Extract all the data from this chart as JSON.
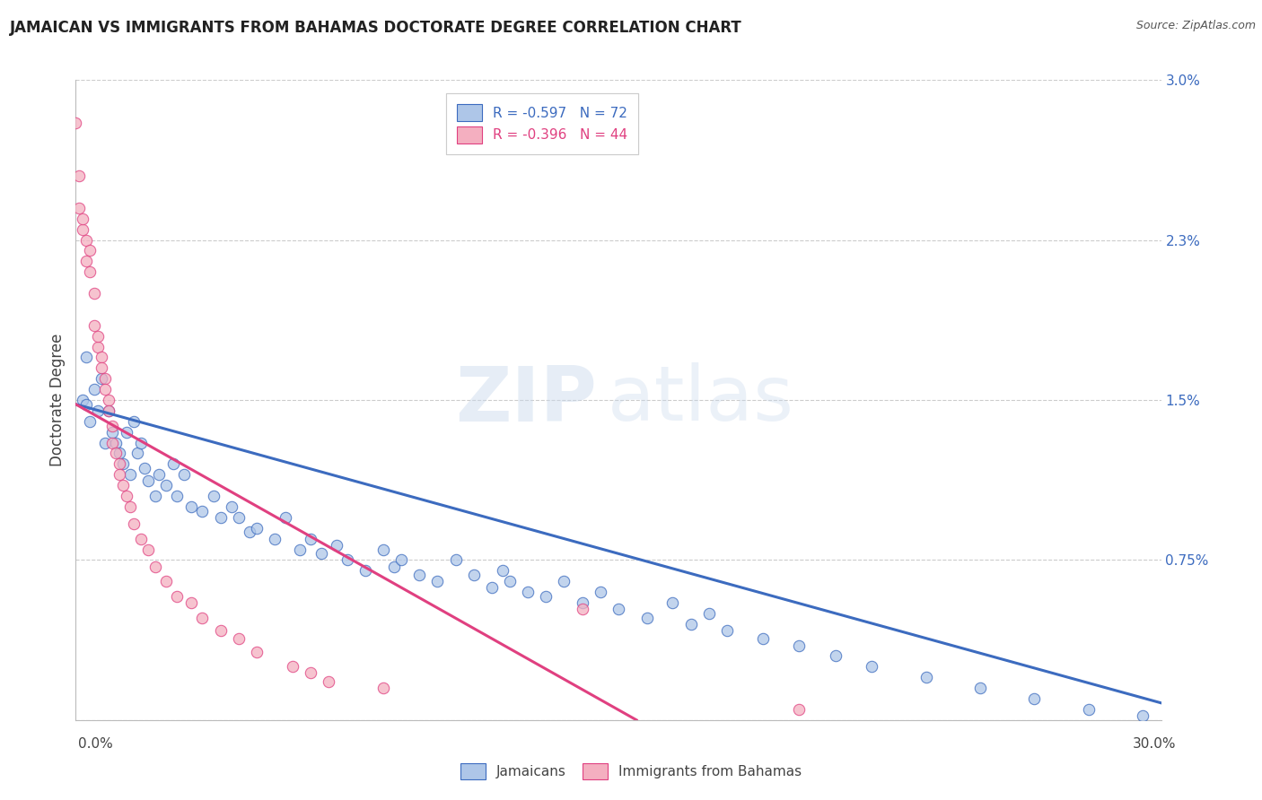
{
  "title": "JAMAICAN VS IMMIGRANTS FROM BAHAMAS DOCTORATE DEGREE CORRELATION CHART",
  "source": "Source: ZipAtlas.com",
  "ylabel": "Doctorate Degree",
  "xmin": 0.0,
  "xmax": 0.3,
  "ymin": 0.0,
  "ymax": 0.03,
  "yticks": [
    0.0,
    0.0075,
    0.015,
    0.0225,
    0.03
  ],
  "ytick_labels": [
    "",
    "0.75%",
    "1.5%",
    "2.3%",
    "3.0%"
  ],
  "blue_color": "#aec6e8",
  "pink_color": "#f4afc0",
  "blue_line_color": "#3c6bbf",
  "pink_line_color": "#e04080",
  "background_color": "#ffffff",
  "blue_line_x0": 0.0,
  "blue_line_y0": 0.0148,
  "blue_line_x1": 0.3,
  "blue_line_y1": 0.0008,
  "pink_line_x0": 0.0,
  "pink_line_y0": 0.0148,
  "pink_line_x1": 0.155,
  "pink_line_y1": 0.0,
  "blue_scatter_x": [
    0.002,
    0.003,
    0.003,
    0.004,
    0.005,
    0.006,
    0.007,
    0.008,
    0.009,
    0.01,
    0.011,
    0.012,
    0.013,
    0.014,
    0.015,
    0.016,
    0.017,
    0.018,
    0.019,
    0.02,
    0.022,
    0.023,
    0.025,
    0.027,
    0.028,
    0.03,
    0.032,
    0.035,
    0.038,
    0.04,
    0.043,
    0.045,
    0.048,
    0.05,
    0.055,
    0.058,
    0.062,
    0.065,
    0.068,
    0.072,
    0.075,
    0.08,
    0.085,
    0.088,
    0.09,
    0.095,
    0.1,
    0.105,
    0.11,
    0.115,
    0.118,
    0.12,
    0.125,
    0.13,
    0.135,
    0.14,
    0.145,
    0.15,
    0.158,
    0.165,
    0.17,
    0.175,
    0.18,
    0.19,
    0.2,
    0.21,
    0.22,
    0.235,
    0.25,
    0.265,
    0.28,
    0.295
  ],
  "blue_scatter_y": [
    0.015,
    0.0148,
    0.017,
    0.014,
    0.0155,
    0.0145,
    0.016,
    0.013,
    0.0145,
    0.0135,
    0.013,
    0.0125,
    0.012,
    0.0135,
    0.0115,
    0.014,
    0.0125,
    0.013,
    0.0118,
    0.0112,
    0.0105,
    0.0115,
    0.011,
    0.012,
    0.0105,
    0.0115,
    0.01,
    0.0098,
    0.0105,
    0.0095,
    0.01,
    0.0095,
    0.0088,
    0.009,
    0.0085,
    0.0095,
    0.008,
    0.0085,
    0.0078,
    0.0082,
    0.0075,
    0.007,
    0.008,
    0.0072,
    0.0075,
    0.0068,
    0.0065,
    0.0075,
    0.0068,
    0.0062,
    0.007,
    0.0065,
    0.006,
    0.0058,
    0.0065,
    0.0055,
    0.006,
    0.0052,
    0.0048,
    0.0055,
    0.0045,
    0.005,
    0.0042,
    0.0038,
    0.0035,
    0.003,
    0.0025,
    0.002,
    0.0015,
    0.001,
    0.0005,
    0.0002
  ],
  "pink_scatter_x": [
    0.0,
    0.001,
    0.001,
    0.002,
    0.002,
    0.003,
    0.003,
    0.004,
    0.004,
    0.005,
    0.005,
    0.006,
    0.006,
    0.007,
    0.007,
    0.008,
    0.008,
    0.009,
    0.009,
    0.01,
    0.01,
    0.011,
    0.012,
    0.012,
    0.013,
    0.014,
    0.015,
    0.016,
    0.018,
    0.02,
    0.022,
    0.025,
    0.028,
    0.032,
    0.035,
    0.04,
    0.045,
    0.05,
    0.06,
    0.065,
    0.07,
    0.085,
    0.14,
    0.2
  ],
  "pink_scatter_y": [
    0.028,
    0.0255,
    0.024,
    0.023,
    0.0235,
    0.0225,
    0.0215,
    0.022,
    0.021,
    0.02,
    0.0185,
    0.0175,
    0.018,
    0.017,
    0.0165,
    0.016,
    0.0155,
    0.015,
    0.0145,
    0.0138,
    0.013,
    0.0125,
    0.012,
    0.0115,
    0.011,
    0.0105,
    0.01,
    0.0092,
    0.0085,
    0.008,
    0.0072,
    0.0065,
    0.0058,
    0.0055,
    0.0048,
    0.0042,
    0.0038,
    0.0032,
    0.0025,
    0.0022,
    0.0018,
    0.0015,
    0.0052,
    0.0005
  ]
}
